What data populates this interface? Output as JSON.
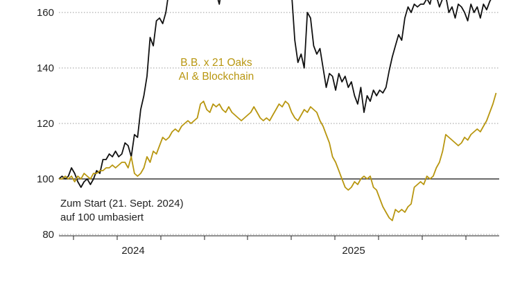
{
  "chart_data": {
    "type": "line",
    "title": "",
    "xlabel": "",
    "ylabel": "",
    "ylim": [
      80,
      165
    ],
    "yticks": [
      80,
      100,
      120,
      140,
      160
    ],
    "x_tick_labels": [
      "2024",
      "2025"
    ],
    "grid": "horizontal dotted",
    "baseline": 100,
    "note": [
      "Zum Start (21. Sept. 2024)",
      "auf 100 umbasiert"
    ],
    "colors": {
      "black_series": "#111111",
      "gold_series": "#b8960f",
      "grid": "#999999"
    },
    "series": [
      {
        "name": "",
        "color": "#111111",
        "points": [
          [
            0,
            100
          ],
          [
            2,
            101
          ],
          [
            4,
            100
          ],
          [
            6,
            101
          ],
          [
            8,
            104
          ],
          [
            10,
            102
          ],
          [
            12,
            99
          ],
          [
            14,
            97
          ],
          [
            16,
            99
          ],
          [
            18,
            100
          ],
          [
            20,
            98
          ],
          [
            22,
            100
          ],
          [
            24,
            103
          ],
          [
            26,
            102
          ],
          [
            28,
            107
          ],
          [
            30,
            107
          ],
          [
            32,
            109
          ],
          [
            34,
            108
          ],
          [
            36,
            110
          ],
          [
            38,
            108
          ],
          [
            40,
            109
          ],
          [
            42,
            113
          ],
          [
            44,
            112
          ],
          [
            46,
            108
          ],
          [
            48,
            116
          ],
          [
            50,
            115
          ],
          [
            52,
            125
          ],
          [
            54,
            130
          ],
          [
            56,
            137
          ],
          [
            58,
            151
          ],
          [
            60,
            148
          ],
          [
            62,
            157
          ],
          [
            64,
            158
          ],
          [
            66,
            156
          ],
          [
            68,
            160
          ],
          [
            70,
            168
          ],
          [
            72,
            166
          ],
          [
            74,
            171
          ],
          [
            76,
            170
          ],
          [
            78,
            165
          ],
          [
            80,
            170
          ],
          [
            82,
            168
          ],
          [
            84,
            170
          ],
          [
            86,
            168
          ],
          [
            88,
            172
          ],
          [
            90,
            168
          ],
          [
            92,
            165
          ],
          [
            94,
            170
          ],
          [
            96,
            168
          ],
          [
            98,
            170
          ],
          [
            100,
            167
          ],
          [
            102,
            163
          ],
          [
            104,
            170
          ],
          [
            106,
            166
          ],
          [
            108,
            172
          ],
          [
            110,
            168
          ],
          [
            112,
            165
          ],
          [
            114,
            170
          ],
          [
            116,
            168
          ],
          [
            118,
            166
          ],
          [
            120,
            170
          ],
          [
            122,
            172
          ],
          [
            124,
            170
          ],
          [
            126,
            168
          ],
          [
            128,
            172
          ],
          [
            130,
            170
          ],
          [
            132,
            165
          ],
          [
            134,
            170
          ],
          [
            136,
            168
          ],
          [
            138,
            170
          ],
          [
            140,
            168
          ],
          [
            142,
            170
          ],
          [
            144,
            166
          ],
          [
            146,
            170
          ],
          [
            148,
            167
          ],
          [
            150,
            150
          ],
          [
            152,
            142
          ],
          [
            154,
            145
          ],
          [
            156,
            140
          ],
          [
            158,
            160
          ],
          [
            160,
            158
          ],
          [
            162,
            148
          ],
          [
            164,
            145
          ],
          [
            166,
            147
          ],
          [
            168,
            140
          ],
          [
            170,
            133
          ],
          [
            172,
            138
          ],
          [
            174,
            137
          ],
          [
            176,
            132
          ],
          [
            178,
            138
          ],
          [
            180,
            135
          ],
          [
            182,
            137
          ],
          [
            184,
            133
          ],
          [
            186,
            135
          ],
          [
            188,
            130
          ],
          [
            190,
            127
          ],
          [
            192,
            133
          ],
          [
            194,
            124
          ],
          [
            196,
            130
          ],
          [
            198,
            128
          ],
          [
            200,
            132
          ],
          [
            202,
            130
          ],
          [
            204,
            132
          ],
          [
            206,
            131
          ],
          [
            208,
            133
          ],
          [
            210,
            139
          ],
          [
            212,
            144
          ],
          [
            214,
            148
          ],
          [
            216,
            152
          ],
          [
            218,
            150
          ],
          [
            220,
            158
          ],
          [
            222,
            162
          ],
          [
            224,
            160
          ],
          [
            226,
            163
          ],
          [
            228,
            162
          ],
          [
            230,
            163
          ],
          [
            232,
            163
          ],
          [
            234,
            165
          ],
          [
            236,
            163
          ],
          [
            238,
            168
          ],
          [
            240,
            166
          ],
          [
            242,
            162
          ],
          [
            244,
            165
          ],
          [
            246,
            166
          ],
          [
            248,
            160
          ],
          [
            250,
            162
          ],
          [
            252,
            158
          ],
          [
            254,
            163
          ],
          [
            256,
            162
          ],
          [
            258,
            160
          ],
          [
            260,
            157
          ],
          [
            262,
            163
          ],
          [
            264,
            160
          ],
          [
            266,
            162
          ],
          [
            268,
            158
          ],
          [
            270,
            163
          ],
          [
            272,
            161
          ],
          [
            274,
            164
          ],
          [
            276,
            166
          ],
          [
            278,
            172
          ]
        ]
      },
      {
        "name": "B.B. x 21 Oaks\nAI & Blockchain",
        "color": "#b8960f",
        "points": [
          [
            0,
            100
          ],
          [
            2,
            100
          ],
          [
            4,
            101
          ],
          [
            6,
            100
          ],
          [
            8,
            101
          ],
          [
            10,
            99
          ],
          [
            12,
            101
          ],
          [
            14,
            100
          ],
          [
            16,
            102
          ],
          [
            18,
            101
          ],
          [
            20,
            100
          ],
          [
            22,
            102
          ],
          [
            24,
            102
          ],
          [
            26,
            103
          ],
          [
            28,
            103
          ],
          [
            30,
            104
          ],
          [
            32,
            104
          ],
          [
            34,
            105
          ],
          [
            36,
            104
          ],
          [
            38,
            105
          ],
          [
            40,
            106
          ],
          [
            42,
            106
          ],
          [
            44,
            104
          ],
          [
            46,
            108
          ],
          [
            48,
            102
          ],
          [
            50,
            101
          ],
          [
            52,
            102
          ],
          [
            54,
            104
          ],
          [
            56,
            108
          ],
          [
            58,
            106
          ],
          [
            60,
            110
          ],
          [
            62,
            109
          ],
          [
            64,
            112
          ],
          [
            66,
            115
          ],
          [
            68,
            114
          ],
          [
            70,
            115
          ],
          [
            72,
            117
          ],
          [
            74,
            118
          ],
          [
            76,
            117
          ],
          [
            78,
            119
          ],
          [
            80,
            120
          ],
          [
            82,
            121
          ],
          [
            84,
            120
          ],
          [
            86,
            121
          ],
          [
            88,
            122
          ],
          [
            90,
            127
          ],
          [
            92,
            128
          ],
          [
            94,
            125
          ],
          [
            96,
            124
          ],
          [
            98,
            127
          ],
          [
            100,
            126
          ],
          [
            102,
            127
          ],
          [
            104,
            125
          ],
          [
            106,
            124
          ],
          [
            108,
            126
          ],
          [
            110,
            124
          ],
          [
            112,
            123
          ],
          [
            114,
            122
          ],
          [
            116,
            121
          ],
          [
            118,
            122
          ],
          [
            120,
            123
          ],
          [
            122,
            124
          ],
          [
            124,
            126
          ],
          [
            126,
            124
          ],
          [
            128,
            122
          ],
          [
            130,
            121
          ],
          [
            132,
            122
          ],
          [
            134,
            121
          ],
          [
            136,
            123
          ],
          [
            138,
            125
          ],
          [
            140,
            127
          ],
          [
            142,
            126
          ],
          [
            144,
            128
          ],
          [
            146,
            127
          ],
          [
            148,
            124
          ],
          [
            150,
            122
          ],
          [
            152,
            121
          ],
          [
            154,
            123
          ],
          [
            156,
            125
          ],
          [
            158,
            124
          ],
          [
            160,
            126
          ],
          [
            162,
            125
          ],
          [
            164,
            124
          ],
          [
            166,
            121
          ],
          [
            168,
            119
          ],
          [
            170,
            116
          ],
          [
            172,
            113
          ],
          [
            174,
            108
          ],
          [
            176,
            106
          ],
          [
            178,
            103
          ],
          [
            180,
            100
          ],
          [
            182,
            97
          ],
          [
            184,
            96
          ],
          [
            186,
            97
          ],
          [
            188,
            99
          ],
          [
            190,
            98
          ],
          [
            192,
            100
          ],
          [
            194,
            101
          ],
          [
            196,
            100
          ],
          [
            198,
            101
          ],
          [
            200,
            97
          ],
          [
            202,
            96
          ],
          [
            204,
            93
          ],
          [
            206,
            90
          ],
          [
            208,
            88
          ],
          [
            210,
            86
          ],
          [
            212,
            85
          ],
          [
            214,
            89
          ],
          [
            216,
            88
          ],
          [
            218,
            89
          ],
          [
            220,
            88
          ],
          [
            222,
            90
          ],
          [
            224,
            91
          ],
          [
            226,
            97
          ],
          [
            228,
            98
          ],
          [
            230,
            99
          ],
          [
            232,
            98
          ],
          [
            234,
            101
          ],
          [
            236,
            100
          ],
          [
            238,
            101
          ],
          [
            240,
            104
          ],
          [
            242,
            106
          ],
          [
            244,
            110
          ],
          [
            246,
            116
          ],
          [
            248,
            115
          ],
          [
            250,
            114
          ],
          [
            252,
            113
          ],
          [
            254,
            112
          ],
          [
            256,
            113
          ],
          [
            258,
            115
          ],
          [
            260,
            114
          ],
          [
            262,
            116
          ],
          [
            264,
            117
          ],
          [
            266,
            118
          ],
          [
            268,
            117
          ],
          [
            270,
            119
          ],
          [
            272,
            121
          ],
          [
            274,
            124
          ],
          [
            276,
            127
          ],
          [
            278,
            131
          ]
        ]
      }
    ]
  }
}
